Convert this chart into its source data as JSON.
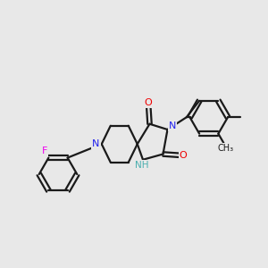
{
  "bg_color": "#e8e8e8",
  "bond_color": "#1a1a1a",
  "N_color": "#2020ee",
  "O_color": "#ee0000",
  "F_color": "#ee00ee",
  "H_color": "#4aafaf",
  "line_width": 1.6,
  "figsize": [
    3.0,
    3.0
  ],
  "dpi": 100,
  "xlim": [
    0,
    12
  ],
  "ylim": [
    0,
    12
  ]
}
